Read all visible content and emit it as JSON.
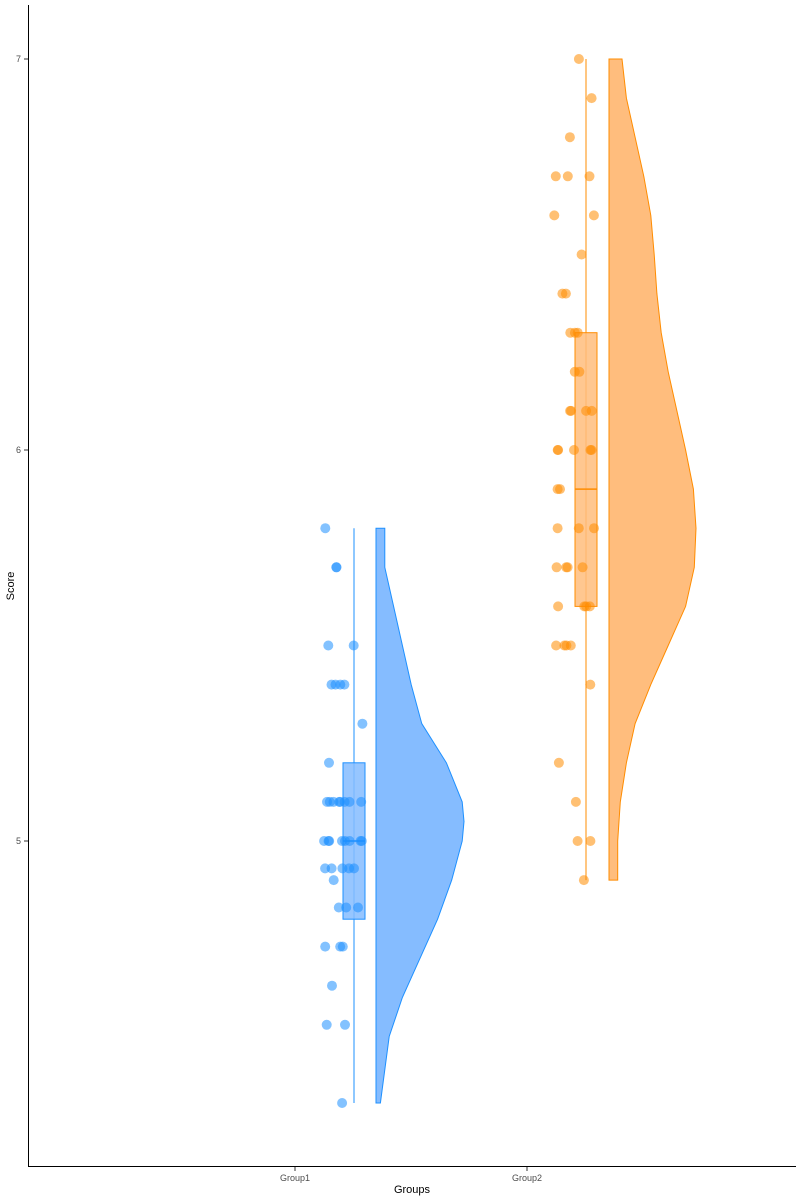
{
  "chart_data": {
    "type": "raincloud",
    "xlabel": "Groups",
    "ylabel": "Score",
    "categories": [
      "Group1",
      "Group2"
    ],
    "yticks": [
      5,
      6,
      7
    ],
    "ylim": [
      4.17,
      7.18
    ],
    "grid": false,
    "legend": "none",
    "series": [
      {
        "category": "Group1",
        "color": "#1E90FF",
        "fill": "#85BCFF",
        "box": {
          "min": 4.33,
          "q1": 4.8,
          "median": 5.0,
          "q3": 5.2,
          "max": 5.8
        },
        "density": [
          [
            4.33,
            0.05
          ],
          [
            4.5,
            0.15
          ],
          [
            4.6,
            0.3
          ],
          [
            4.7,
            0.5
          ],
          [
            4.8,
            0.7
          ],
          [
            4.9,
            0.86
          ],
          [
            5.0,
            0.98
          ],
          [
            5.05,
            1.0
          ],
          [
            5.1,
            0.98
          ],
          [
            5.2,
            0.8
          ],
          [
            5.3,
            0.52
          ],
          [
            5.4,
            0.4
          ],
          [
            5.5,
            0.3
          ],
          [
            5.6,
            0.2
          ],
          [
            5.7,
            0.1
          ],
          [
            5.8,
            0.1
          ]
        ],
        "points": [
          4.33,
          4.53,
          4.53,
          4.63,
          4.73,
          4.73,
          4.73,
          4.83,
          4.83,
          4.83,
          4.9,
          4.93,
          4.93,
          4.93,
          4.93,
          4.93,
          5.0,
          5.0,
          5.0,
          5.0,
          5.0,
          5.0,
          5.0,
          5.0,
          5.1,
          5.1,
          5.1,
          5.1,
          5.1,
          5.1,
          5.1,
          5.1,
          5.2,
          5.3,
          5.4,
          5.4,
          5.4,
          5.4,
          5.5,
          5.5,
          5.7,
          5.7,
          5.8
        ]
      },
      {
        "category": "Group2",
        "color": "#FF8C00",
        "fill": "#FFBD7D",
        "box": {
          "min": 4.9,
          "q1": 5.6,
          "median": 5.9,
          "q3": 6.3,
          "max": 7.0
        },
        "density": [
          [
            4.9,
            0.1
          ],
          [
            5.0,
            0.1
          ],
          [
            5.1,
            0.13
          ],
          [
            5.2,
            0.2
          ],
          [
            5.3,
            0.3
          ],
          [
            5.4,
            0.48
          ],
          [
            5.5,
            0.68
          ],
          [
            5.6,
            0.88
          ],
          [
            5.7,
            0.98
          ],
          [
            5.8,
            1.0
          ],
          [
            5.9,
            0.97
          ],
          [
            6.0,
            0.88
          ],
          [
            6.1,
            0.78
          ],
          [
            6.2,
            0.68
          ],
          [
            6.3,
            0.6
          ],
          [
            6.4,
            0.55
          ],
          [
            6.5,
            0.52
          ],
          [
            6.6,
            0.48
          ],
          [
            6.7,
            0.4
          ],
          [
            6.8,
            0.3
          ],
          [
            6.9,
            0.2
          ],
          [
            7.0,
            0.15
          ]
        ],
        "points": [
          4.9,
          5.0,
          5.0,
          5.1,
          5.2,
          5.4,
          5.5,
          5.5,
          5.5,
          5.5,
          5.6,
          5.6,
          5.6,
          5.6,
          5.7,
          5.7,
          5.7,
          5.7,
          5.8,
          5.8,
          5.8,
          5.9,
          5.9,
          6.0,
          6.0,
          6.0,
          6.0,
          6.0,
          6.1,
          6.1,
          6.1,
          6.1,
          6.2,
          6.2,
          6.3,
          6.3,
          6.3,
          6.4,
          6.4,
          6.5,
          6.6,
          6.6,
          6.7,
          6.7,
          6.7,
          6.8,
          6.9,
          7.0
        ]
      }
    ]
  }
}
